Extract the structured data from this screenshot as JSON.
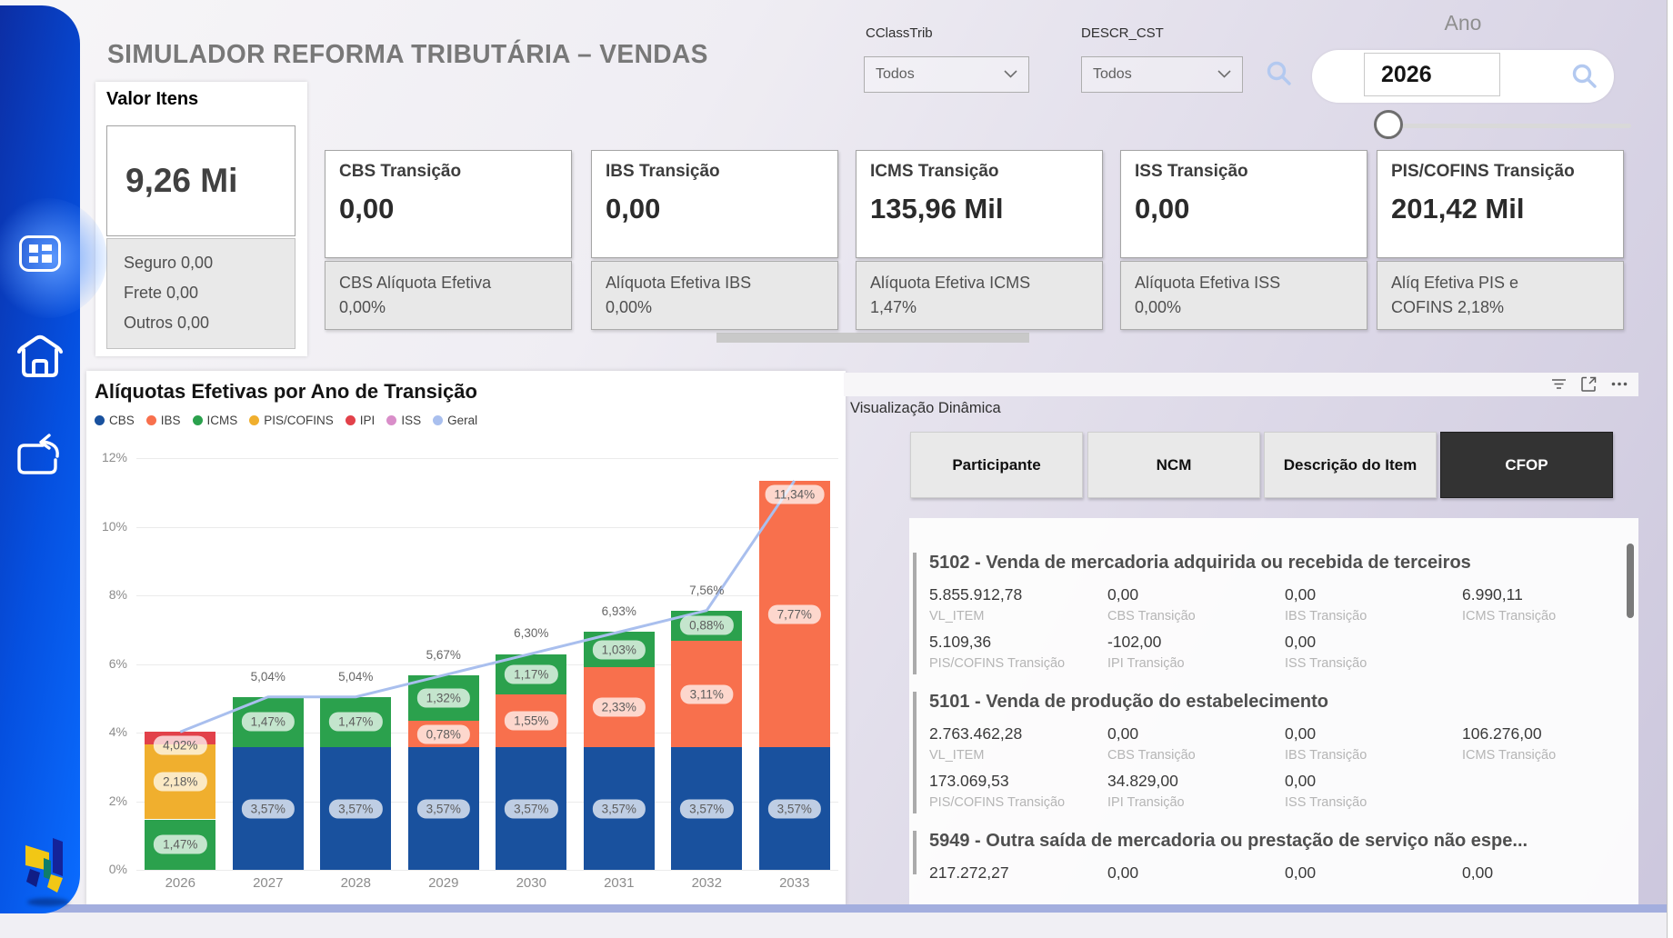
{
  "app": {
    "title": "SIMULADOR REFORMA TRIBUTÁRIA – VENDAS"
  },
  "filters": {
    "cclasstrib": {
      "label": "CClassTrib",
      "value": "Todos"
    },
    "descr_cst": {
      "label": "DESCR_CST",
      "value": "Todos"
    },
    "ano": {
      "label": "Ano",
      "value": "2026"
    }
  },
  "valor_itens": {
    "title": "Valor Itens",
    "value": "9,26 Mi",
    "details": [
      "Seguro 0,00",
      "Frete 0,00",
      "Outros 0,00"
    ]
  },
  "kpi_cards": [
    {
      "title": "CBS Transição",
      "value": "0,00",
      "subtitle_lines": [
        "CBS Alíquota Efetiva",
        "0,00%"
      ]
    },
    {
      "title": "IBS Transição",
      "value": "0,00",
      "subtitle_lines": [
        "Alíquota Efetiva IBS",
        "0,00%"
      ]
    },
    {
      "title": "ICMS Transição",
      "value": "135,96 Mil",
      "subtitle_lines": [
        "Alíquota Efetiva ICMS",
        "1,47%"
      ]
    },
    {
      "title": "ISS Transição",
      "value": "0,00",
      "subtitle_lines": [
        "Alíquota Efetiva ISS",
        "0,00%"
      ]
    },
    {
      "title": "PIS/COFINS Transição",
      "value": "201,42 Mil",
      "subtitle_lines": [
        "Alíq Efetiva PIS e",
        "COFINS 2,18%"
      ]
    }
  ],
  "chart_data": {
    "type": "bar",
    "subtype": "stacked-column-with-line",
    "title": "Alíquotas Efetivas por Ano de Transição",
    "categories": [
      "2026",
      "2027",
      "2028",
      "2029",
      "2030",
      "2031",
      "2032",
      "2033"
    ],
    "series": [
      {
        "name": "CBS",
        "color": "#19519E",
        "values": [
          0,
          3.57,
          3.57,
          3.57,
          3.57,
          3.57,
          3.57,
          3.57
        ],
        "labels": [
          "",
          "3,57%",
          "3,57%",
          "3,57%",
          "3,57%",
          "3,57%",
          "3,57%",
          "3,57%"
        ]
      },
      {
        "name": "IBS",
        "color": "#F8704D",
        "values": [
          0,
          0,
          0,
          0.78,
          1.55,
          2.33,
          3.11,
          7.77
        ],
        "labels": [
          "",
          "",
          "",
          "0,78%",
          "1,55%",
          "2,33%",
          "3,11%",
          "7,77%"
        ]
      },
      {
        "name": "ICMS",
        "color": "#2BA14D",
        "values": [
          1.47,
          1.47,
          1.47,
          1.32,
          1.17,
          1.03,
          0.88,
          0
        ],
        "labels": [
          "1,47%",
          "1,47%",
          "1,47%",
          "1,32%",
          "1,17%",
          "1,03%",
          "0,88%",
          ""
        ]
      },
      {
        "name": "PIS/COFINS",
        "color": "#F0AF2E",
        "values": [
          2.18,
          0,
          0,
          0,
          0,
          0,
          0,
          0
        ],
        "labels": [
          "2,18%",
          "",
          "",
          "",
          "",
          "",
          "",
          ""
        ]
      },
      {
        "name": "IPI",
        "color": "#E2414A",
        "values": [
          0.37,
          0,
          0,
          0,
          0,
          0,
          0,
          0
        ],
        "labels": [
          "",
          "",
          "",
          "",
          "",
          "",
          "",
          ""
        ]
      },
      {
        "name": "ISS",
        "color": "#D98EC9",
        "values": [
          0,
          0,
          0,
          0,
          0,
          0,
          0,
          0
        ],
        "labels": [
          "",
          "",
          "",
          "",
          "",
          "",
          "",
          ""
        ]
      }
    ],
    "line_series": {
      "name": "Geral",
      "color": "#A9BFEE",
      "values": [
        4.02,
        5.04,
        5.04,
        5.67,
        6.3,
        6.93,
        7.56,
        11.34
      ],
      "labels": [
        "",
        "5,04%",
        "5,04%",
        "5,67%",
        "6,30%",
        "6,93%",
        "7,56%",
        ""
      ]
    },
    "extra_chips": [
      {
        "index": 0,
        "label": "4,02%",
        "pct": 3.62
      },
      {
        "index": 7,
        "label": "11,34%",
        "pct": 10.95
      }
    ],
    "xlabel": "",
    "ylabel": "",
    "ylim": [
      0,
      12
    ],
    "yticks": [
      "0%",
      "2%",
      "4%",
      "6%",
      "8%",
      "10%",
      "12%"
    ],
    "grid": true,
    "legend_position": "top"
  },
  "viz_panel": {
    "title": "Visualização Dinâmica",
    "buttons": [
      {
        "label": "Participante",
        "active": false
      },
      {
        "label": "NCM",
        "active": false
      },
      {
        "label": "Descrição do Item",
        "active": false
      },
      {
        "label": "CFOP",
        "active": true
      }
    ],
    "items": [
      {
        "header": "5102 - Venda de mercadoria adquirida ou recebida de terceiros",
        "metrics": [
          {
            "value": "5.855.912,78",
            "label": "VL_ITEM"
          },
          {
            "value": "0,00",
            "label": "CBS Transição"
          },
          {
            "value": "0,00",
            "label": "IBS Transição"
          },
          {
            "value": "6.990,11",
            "label": "ICMS Transição"
          },
          {
            "value": "5.109,36",
            "label": "PIS/COFINS Transição"
          },
          {
            "value": "-102,00",
            "label": "IPI Transição"
          },
          {
            "value": "0,00",
            "label": "ISS Transição"
          }
        ]
      },
      {
        "header": "5101 - Venda de produção do estabelecimento",
        "metrics": [
          {
            "value": "2.763.462,28",
            "label": "VL_ITEM"
          },
          {
            "value": "0,00",
            "label": "CBS Transição"
          },
          {
            "value": "0,00",
            "label": "IBS Transição"
          },
          {
            "value": "106.276,00",
            "label": "ICMS Transição"
          },
          {
            "value": "173.069,53",
            "label": "PIS/COFINS Transição"
          },
          {
            "value": "34.829,00",
            "label": "IPI Transição"
          },
          {
            "value": "0,00",
            "label": "ISS Transição"
          }
        ]
      },
      {
        "header": "5949 - Outra saída de mercadoria ou prestação de serviço não espe...",
        "metrics": [
          {
            "value": "217.272,27",
            "label": ""
          },
          {
            "value": "0,00",
            "label": ""
          },
          {
            "value": "0,00",
            "label": ""
          },
          {
            "value": "0,00",
            "label": ""
          }
        ]
      }
    ]
  },
  "colors": {
    "sidebar_blue": "#0550E0",
    "search_icon_blue": "#B3C9F0",
    "selected_button_bg": "#333333"
  }
}
